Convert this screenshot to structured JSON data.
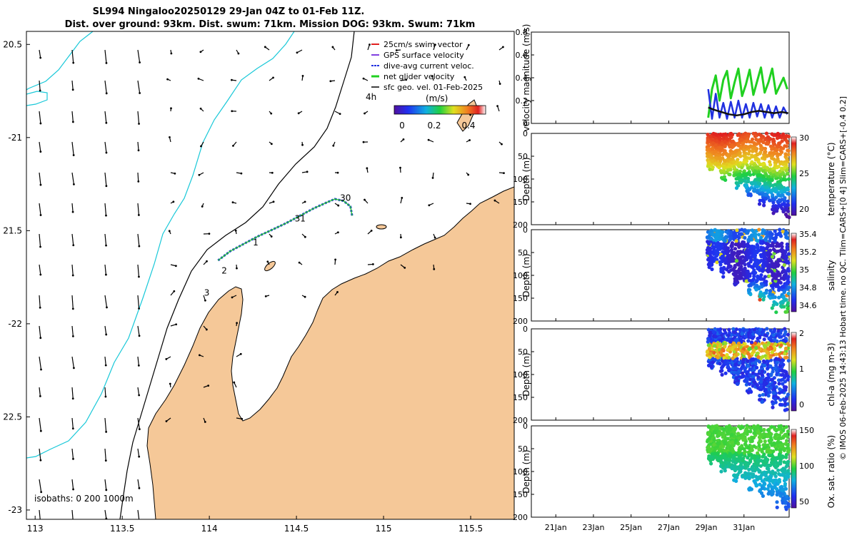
{
  "figure": {
    "title_line1": "SL994 Ningaloo20250129 29-Jan 04Z to 01-Feb 11Z.",
    "title_line2": "Dist. over ground: 93km. Dist. swum: 71km. Mission DOG: 93km. Swum: 71km",
    "credit": "© IMOS 06-Feb-2025 14:43:13 Hobart time. no QC. Tlim=CARS+[0 4] Slim=CARS+[-0.4 0.2]"
  },
  "colors": {
    "land": "#f5c898",
    "coast": "#000000",
    "isobath_200": "#000000",
    "isobath_1000": "#18c8d8",
    "swim": "#e02020",
    "gps": "#8040e0",
    "dive": "#2030e0",
    "net": "#20d020",
    "geo": "#000000"
  },
  "map": {
    "xlim": [
      112.95,
      115.75
    ],
    "ylim": [
      -23.05,
      -20.43
    ],
    "xticks": [
      113,
      113.5,
      114,
      114.5,
      115,
      115.5
    ],
    "xtick_labels": [
      "113",
      "113.5",
      "114",
      "114.5",
      "115",
      "115.5"
    ],
    "yticks": [
      -20.5,
      -21,
      -21.5,
      -22,
      -22.5,
      -23
    ],
    "ytick_labels": [
      "20.5",
      "-21",
      "21.5",
      "-22",
      "22.5",
      "-23"
    ],
    "isobaths_label": "isobaths: 0   200  1000m",
    "legend": [
      {
        "label": "25cm/s swim vector",
        "color": "#e02020"
      },
      {
        "label": "GPS surface velocity",
        "color": "#8040e0"
      },
      {
        "label": "dive-avg current veloc.",
        "color": "#2030e0"
      },
      {
        "label": "net glider velocity",
        "color": "#20d020"
      },
      {
        "label": "sfc geo. vel. 01-Feb-2025",
        "color": "#000000"
      }
    ],
    "age_label": "4h",
    "colorbar_title": "(m/s)",
    "colorbar_ticks": [
      "0",
      "0.2",
      "0.4"
    ],
    "track_labels": [
      {
        "text": "30",
        "lon": 114.75,
        "lat": -21.34
      },
      {
        "text": "31",
        "lon": 114.49,
        "lat": -21.45
      },
      {
        "text": "1",
        "lon": 114.25,
        "lat": -21.58
      },
      {
        "text": "2",
        "lon": 114.07,
        "lat": -21.73
      },
      {
        "text": "3",
        "lon": 113.97,
        "lat": -21.85
      }
    ],
    "track": [
      [
        114.05,
        -21.66
      ],
      [
        114.12,
        -21.61
      ],
      [
        114.2,
        -21.57
      ],
      [
        114.28,
        -21.53
      ],
      [
        114.35,
        -21.5
      ],
      [
        114.44,
        -21.46
      ],
      [
        114.52,
        -21.42
      ],
      [
        114.6,
        -21.38
      ],
      [
        114.67,
        -21.35
      ],
      [
        114.72,
        -21.33
      ],
      [
        114.77,
        -21.34
      ],
      [
        114.81,
        -21.37
      ],
      [
        114.82,
        -21.42
      ]
    ]
  },
  "chart_data": [
    {
      "type": "line",
      "title": "",
      "xlabel": "",
      "ylabel": "velocity magnitude (m/s)",
      "xlim": [
        19.7,
        33.4
      ],
      "ylim": [
        0,
        0.8
      ],
      "yticks": [
        "0",
        "0.2",
        "0.4",
        "0.6",
        "0.8"
      ],
      "xticks": [
        "21Jan",
        "23Jan",
        "25Jan",
        "27Jan",
        "29Jan",
        "31Jan"
      ],
      "series": [
        {
          "name": "net glider velocity",
          "color": "#20d020",
          "x": [
            29.1,
            29.3,
            29.5,
            29.7,
            29.9,
            30.1,
            30.3,
            30.5,
            30.7,
            30.9,
            31.1,
            31.3,
            31.5,
            31.7,
            31.9,
            32.1,
            32.3,
            32.5,
            32.7,
            32.9,
            33.1,
            33.3
          ],
          "values": [
            0.05,
            0.3,
            0.42,
            0.2,
            0.38,
            0.46,
            0.22,
            0.36,
            0.48,
            0.24,
            0.34,
            0.47,
            0.25,
            0.37,
            0.49,
            0.27,
            0.36,
            0.48,
            0.26,
            0.33,
            0.4,
            0.3
          ]
        },
        {
          "name": "dive-avg current veloc.",
          "color": "#2030e0",
          "x": [
            29.1,
            29.3,
            29.5,
            29.7,
            29.9,
            30.1,
            30.3,
            30.5,
            30.7,
            30.9,
            31.1,
            31.3,
            31.5,
            31.7,
            31.9,
            32.1,
            32.3,
            32.5,
            32.7,
            32.9,
            33.1,
            33.3
          ],
          "values": [
            0.3,
            0.04,
            0.26,
            0.05,
            0.18,
            0.04,
            0.19,
            0.05,
            0.2,
            0.05,
            0.17,
            0.05,
            0.18,
            0.06,
            0.17,
            0.05,
            0.16,
            0.05,
            0.15,
            0.05,
            0.14,
            0.08
          ]
        },
        {
          "name": "sfc geo. vel.",
          "color": "#111111",
          "x": [
            29.1,
            29.4,
            29.8,
            30.2,
            30.6,
            31.0,
            31.4,
            31.8,
            32.2,
            32.6,
            33.0,
            33.35
          ],
          "values": [
            0.14,
            0.12,
            0.1,
            0.08,
            0.07,
            0.08,
            0.1,
            0.11,
            0.1,
            0.09,
            0.1,
            0.09
          ]
        }
      ]
    },
    {
      "type": "heatmap",
      "ylabel": "Depth (m)",
      "cbar_label": "temperature (°C)",
      "ylim": [
        200,
        0
      ],
      "yticks": [
        "0",
        "50",
        "100",
        "150",
        "200"
      ],
      "cbar_ticks": [
        "20",
        "25",
        "30"
      ],
      "clim": [
        18,
        31
      ],
      "xticks": [
        "21Jan",
        "23Jan",
        "25Jan",
        "27Jan",
        "29Jan",
        "31Jan"
      ]
    },
    {
      "type": "heatmap",
      "ylabel": "Depth (m)",
      "cbar_label": "salinity",
      "ylim": [
        200,
        0
      ],
      "yticks": [
        "0",
        "50",
        "100",
        "150",
        "200"
      ],
      "cbar_ticks": [
        "34.6",
        "34.8",
        "35",
        "35.2",
        "35.4"
      ],
      "clim": [
        34.5,
        35.5
      ],
      "xticks": [
        "21Jan",
        "23Jan",
        "25Jan",
        "27Jan",
        "29Jan",
        "31Jan"
      ]
    },
    {
      "type": "heatmap",
      "ylabel": "Depth (m)",
      "cbar_label": "chl-a (mg m-3)",
      "ylim": [
        200,
        0
      ],
      "yticks": [
        "0",
        "50",
        "100",
        "150",
        "200"
      ],
      "cbar_ticks": [
        "0",
        "1",
        "2"
      ],
      "clim": [
        0,
        2
      ],
      "xticks": [
        "21Jan",
        "23Jan",
        "25Jan",
        "27Jan",
        "29Jan",
        "31Jan"
      ]
    },
    {
      "type": "heatmap",
      "ylabel": "Depth (m)",
      "cbar_label": "Ox. sat. ratio (%)",
      "ylim": [
        200,
        0
      ],
      "yticks": [
        "0",
        "50",
        "100",
        "150",
        "200"
      ],
      "cbar_ticks": [
        "50",
        "100",
        "150"
      ],
      "clim": [
        20,
        175
      ],
      "xticks": [
        "21Jan",
        "23Jan",
        "25Jan",
        "27Jan",
        "29Jan",
        "31Jan"
      ]
    }
  ]
}
